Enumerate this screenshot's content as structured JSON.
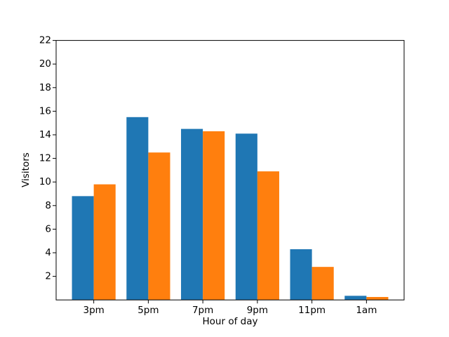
{
  "figure": {
    "background": "#ffffff"
  },
  "chart_data": {
    "type": "bar",
    "title": "",
    "xlabel": "Hour of day",
    "ylabel": "Visitors",
    "categories": [
      "3pm",
      "5pm",
      "7pm",
      "9pm",
      "11pm",
      "1am"
    ],
    "series": [
      {
        "color": "#1f77b4",
        "values": [
          8.8,
          15.5,
          14.5,
          14.1,
          4.3,
          0.35
        ]
      },
      {
        "color": "#ff7f0e",
        "values": [
          9.8,
          12.5,
          14.3,
          10.9,
          2.8,
          0.25
        ]
      }
    ],
    "ylim": [
      0,
      22
    ],
    "yticks": [
      2,
      4,
      6,
      8,
      10,
      12,
      14,
      16,
      18,
      20,
      22
    ],
    "grid": false,
    "legend": "none",
    "axis_color": "#000000",
    "text_color": "#000000"
  }
}
